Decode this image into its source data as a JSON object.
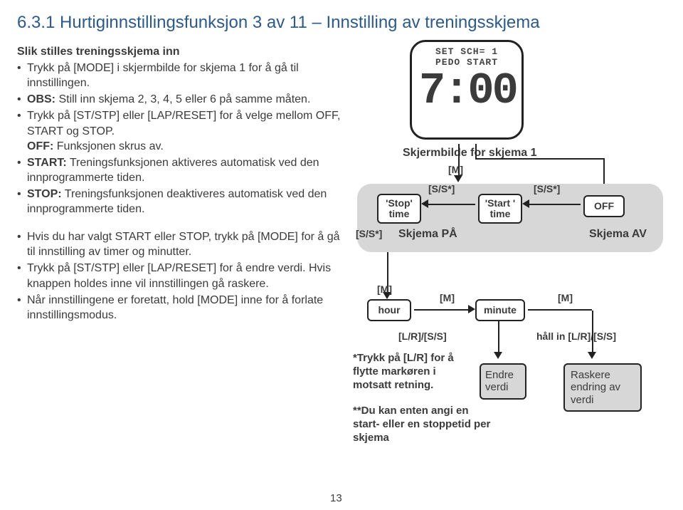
{
  "heading": "6.3.1 Hurtiginnstillingsfunksjon 3 av 11 – Innstilling av treningsskjema",
  "left": {
    "subtitle": "Slik stilles treningsskjema inn",
    "b1": "Trykk på [MODE] i skjermbilde for skjema 1 for å gå til innstillingen.",
    "b2a": "OBS:",
    "b2b": " Still inn skjema 2, 3, 4, 5 eller 6 på samme måten.",
    "b3a": "Trykk på [ST/STP] eller [LAP/RESET] for å velge mellom OFF, START og STOP.",
    "b3b": "OFF:",
    "b3c": " Funksjonen skrus av.",
    "b4a": "START:",
    "b4b": " Treningsfunksjonen aktiveres automatisk ved den innprogrammerte tiden.",
    "b5a": "STOP:",
    "b5b": " Treningsfunksjonen deaktiveres automatisk ved den innprogrammerte tiden.",
    "c1": "Hvis du har valgt START eller STOP, trykk på [MODE] for å gå til innstilling av timer og minutter.",
    "c2": "Trykk på [ST/STP] eller [LAP/RESET] for å endre verdi. Hvis knappen holdes inne vil innstillingen gå raskere.",
    "c3": "Når innstillingene er foretatt, hold [MODE] inne for å forlate innstillingsmodus."
  },
  "watch": {
    "line1": "SET SCH= 1",
    "line2": "PEDO  START",
    "time": "7:00"
  },
  "right": {
    "caption": "Skjermbilde for skjema 1",
    "M": "[M]",
    "SS": "[S/S*]",
    "stop1": "'Stop'",
    "stop2": "time",
    "start1": "'Start '",
    "start2": "time",
    "off": "OFF",
    "schon": "Skjema PÅ",
    "schoff": "Skjema AV",
    "hour": "hour",
    "minute": "minute",
    "lrss": "[L/R]/[S/S]",
    "hold": "håll in [L/R]/[S/S]",
    "note1": "*Trykk på [L/R] for å flytte markøren i motsatt retning.",
    "note2": "**Du kan enten angi en start- eller en stoppetid per skjema",
    "endre": "Endre verdi",
    "raskere": "Raskere endring av verdi"
  },
  "pagenum": "13"
}
